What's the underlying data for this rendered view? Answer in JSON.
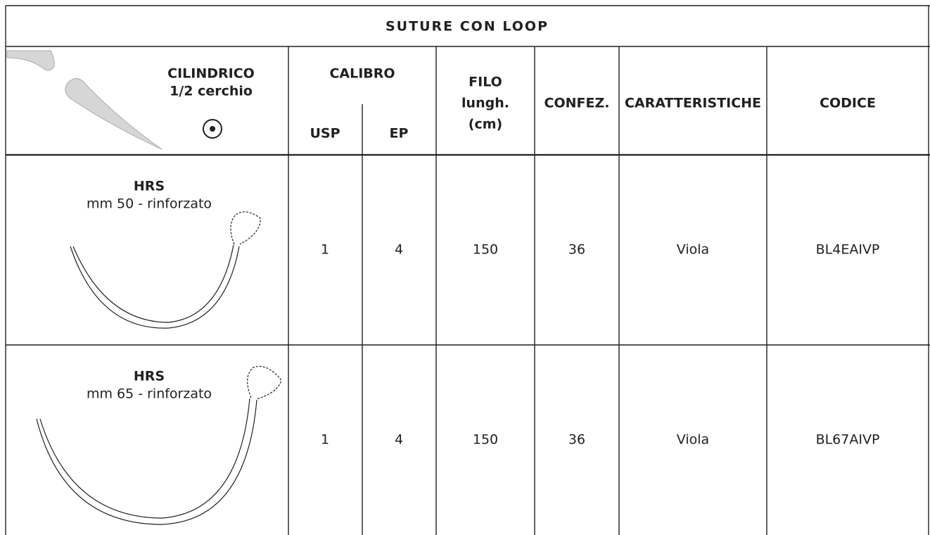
{
  "header": {
    "title": "SUTURE CON LOOP"
  },
  "table": {
    "columns": {
      "needle": [
        "CILINDRICO",
        "1/2 cerchio"
      ],
      "calibro": "CALIBRO",
      "usp": "USP",
      "ep": "EP",
      "filo": [
        "FILO",
        "lungh.",
        "(cm)"
      ],
      "confez": "CONFEZ.",
      "caratteristiche": "CARATTERISTICHE",
      "codice": "CODICE"
    },
    "rows": [
      {
        "needle": "HRS",
        "size": "mm 50 - rinforzato",
        "usp": 1,
        "ep": 4,
        "filo": 150,
        "confez": 36,
        "caratteristiche": "Viola",
        "codice": "BL4EAIVP"
      },
      {
        "needle": "HRS",
        "size": "mm 65 - rinforzato",
        "usp": 1,
        "ep": 4,
        "filo": 150,
        "confez": 36,
        "caratteristiche": "Viola",
        "codice": "BL67AIVP"
      }
    ]
  }
}
